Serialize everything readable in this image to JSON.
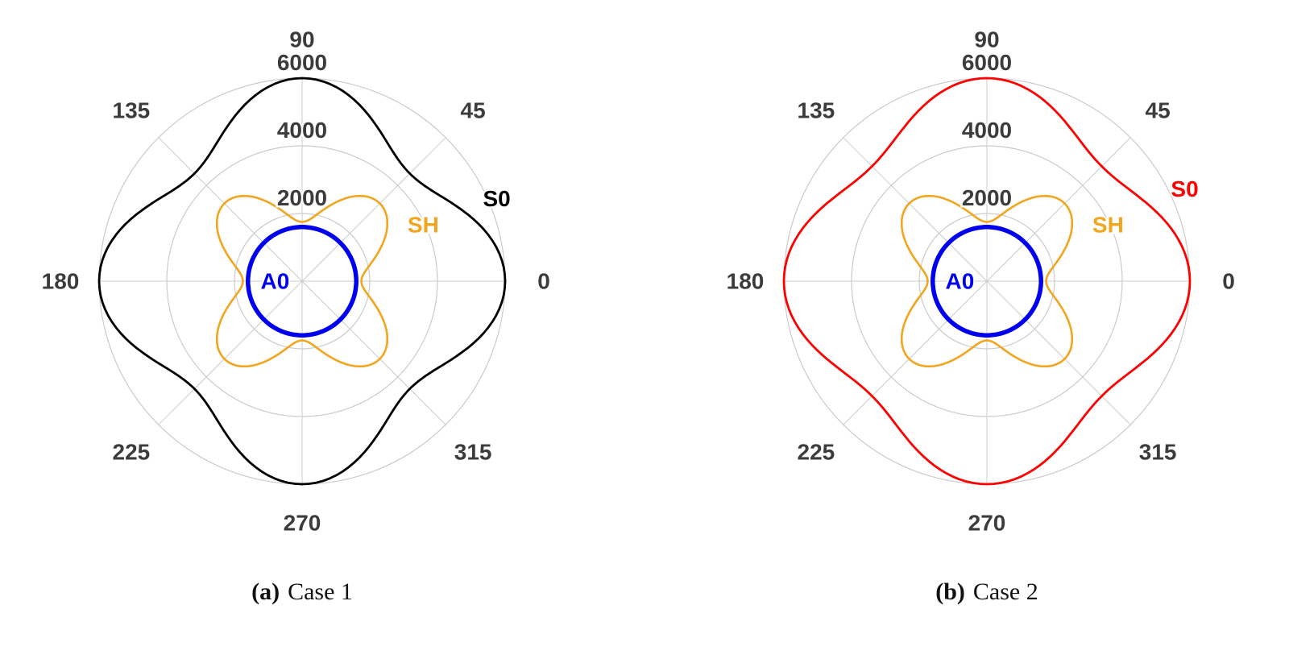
{
  "captions": [
    {
      "label": "(a)",
      "text": "Case 1"
    },
    {
      "label": "(b)",
      "text": "Case 2"
    }
  ],
  "chart_data": [
    {
      "type": "polar-line",
      "title": "",
      "angle_unit": "degrees",
      "rmax": 6000,
      "grid": true,
      "grid_color": "#cbcbcb",
      "angle_ticks_deg": [
        0,
        45,
        90,
        135,
        180,
        225,
        270,
        315
      ],
      "radial_ticks": [
        2000,
        4000,
        6000
      ],
      "series": [
        {
          "name": "S0",
          "color": "#000000",
          "width": 2.8,
          "model": {
            "mean": 5250,
            "amp": 750,
            "harmonic": 4
          },
          "angles_deg": [
            0,
            15,
            30,
            45,
            60,
            75,
            90,
            105,
            120,
            135,
            150,
            165,
            180,
            195,
            210,
            225,
            240,
            255,
            270,
            285,
            300,
            315,
            330,
            345
          ],
          "values": [
            6000,
            5625,
            4875,
            4500,
            4875,
            5625,
            6000,
            5625,
            4875,
            4500,
            4875,
            5625,
            6000,
            5625,
            4875,
            4500,
            4875,
            5625,
            6000,
            5625,
            4875,
            4500,
            4875,
            5625
          ],
          "label": {
            "text": "S0",
            "angle_deg": 23,
            "radius": 6250
          }
        },
        {
          "name": "SH",
          "color": "#f2a51f",
          "width": 2.6,
          "model": {
            "mean": 2500,
            "amp": -750,
            "harmonic": 4
          },
          "angles_deg": [
            0,
            15,
            30,
            45,
            60,
            75,
            90,
            105,
            120,
            135,
            150,
            165,
            180,
            195,
            210,
            225,
            240,
            255,
            270,
            285,
            300,
            315,
            330,
            345
          ],
          "values": [
            1750,
            2125,
            2875,
            3250,
            2875,
            2125,
            1750,
            2125,
            2875,
            3250,
            2875,
            2125,
            1750,
            2125,
            2875,
            3250,
            2875,
            2125,
            1750,
            2125,
            2875,
            3250,
            2875,
            2125
          ],
          "label": {
            "text": "SH",
            "angle_deg": 25,
            "radius": 3950
          }
        },
        {
          "name": "A0",
          "color": "#0000ee",
          "width": 5.5,
          "model": {
            "mean": 1600,
            "amp": 0,
            "harmonic": 1
          },
          "angles_deg": [
            0,
            15,
            30,
            45,
            60,
            75,
            90,
            105,
            120,
            135,
            150,
            165,
            180,
            195,
            210,
            225,
            240,
            255,
            270,
            285,
            300,
            315,
            330,
            345
          ],
          "values": [
            1600,
            1600,
            1600,
            1600,
            1600,
            1600,
            1600,
            1600,
            1600,
            1600,
            1600,
            1600,
            1600,
            1600,
            1600,
            1600,
            1600,
            1600,
            1600,
            1600,
            1600,
            1600,
            1600,
            1600
          ],
          "label": {
            "text": "A0",
            "angle_deg": 180,
            "radius": 800
          }
        }
      ]
    },
    {
      "type": "polar-line",
      "title": "",
      "angle_unit": "degrees",
      "rmax": 6000,
      "grid": true,
      "grid_color": "#cbcbcb",
      "angle_ticks_deg": [
        0,
        45,
        90,
        135,
        180,
        225,
        270,
        315
      ],
      "radial_ticks": [
        2000,
        4000,
        6000
      ],
      "series": [
        {
          "name": "S0",
          "color": "#ff0000",
          "width": 2.8,
          "model": {
            "mean": 5400,
            "amp": 600,
            "harmonic": 4
          },
          "angles_deg": [
            0,
            15,
            30,
            45,
            60,
            75,
            90,
            105,
            120,
            135,
            150,
            165,
            180,
            195,
            210,
            225,
            240,
            255,
            270,
            285,
            300,
            315,
            330,
            345
          ],
          "values": [
            6000,
            5700,
            5100,
            4800,
            5100,
            5700,
            6000,
            5700,
            5100,
            4800,
            5100,
            5700,
            6000,
            5700,
            5100,
            4800,
            5100,
            5700,
            6000,
            5700,
            5100,
            4800,
            5100,
            5700
          ],
          "label": {
            "text": "S0",
            "angle_deg": 25,
            "radius": 6450
          }
        },
        {
          "name": "SH",
          "color": "#f2a51f",
          "width": 2.6,
          "model": {
            "mean": 2500,
            "amp": -750,
            "harmonic": 4
          },
          "angles_deg": [
            0,
            15,
            30,
            45,
            60,
            75,
            90,
            105,
            120,
            135,
            150,
            165,
            180,
            195,
            210,
            225,
            240,
            255,
            270,
            285,
            300,
            315,
            330,
            345
          ],
          "values": [
            1750,
            2125,
            2875,
            3250,
            2875,
            2125,
            1750,
            2125,
            2875,
            3250,
            2875,
            2125,
            1750,
            2125,
            2875,
            3250,
            2875,
            2125,
            1750,
            2125,
            2875,
            3250,
            2875,
            2125
          ],
          "label": {
            "text": "SH",
            "angle_deg": 25,
            "radius": 3950
          }
        },
        {
          "name": "A0",
          "color": "#0000ee",
          "width": 5.5,
          "model": {
            "mean": 1600,
            "amp": 0,
            "harmonic": 1
          },
          "angles_deg": [
            0,
            15,
            30,
            45,
            60,
            75,
            90,
            105,
            120,
            135,
            150,
            165,
            180,
            195,
            210,
            225,
            240,
            255,
            270,
            285,
            300,
            315,
            330,
            345
          ],
          "values": [
            1600,
            1600,
            1600,
            1600,
            1600,
            1600,
            1600,
            1600,
            1600,
            1600,
            1600,
            1600,
            1600,
            1600,
            1600,
            1600,
            1600,
            1600,
            1600,
            1600,
            1600,
            1600,
            1600,
            1600
          ],
          "label": {
            "text": "A0",
            "angle_deg": 180,
            "radius": 800
          }
        }
      ]
    }
  ]
}
